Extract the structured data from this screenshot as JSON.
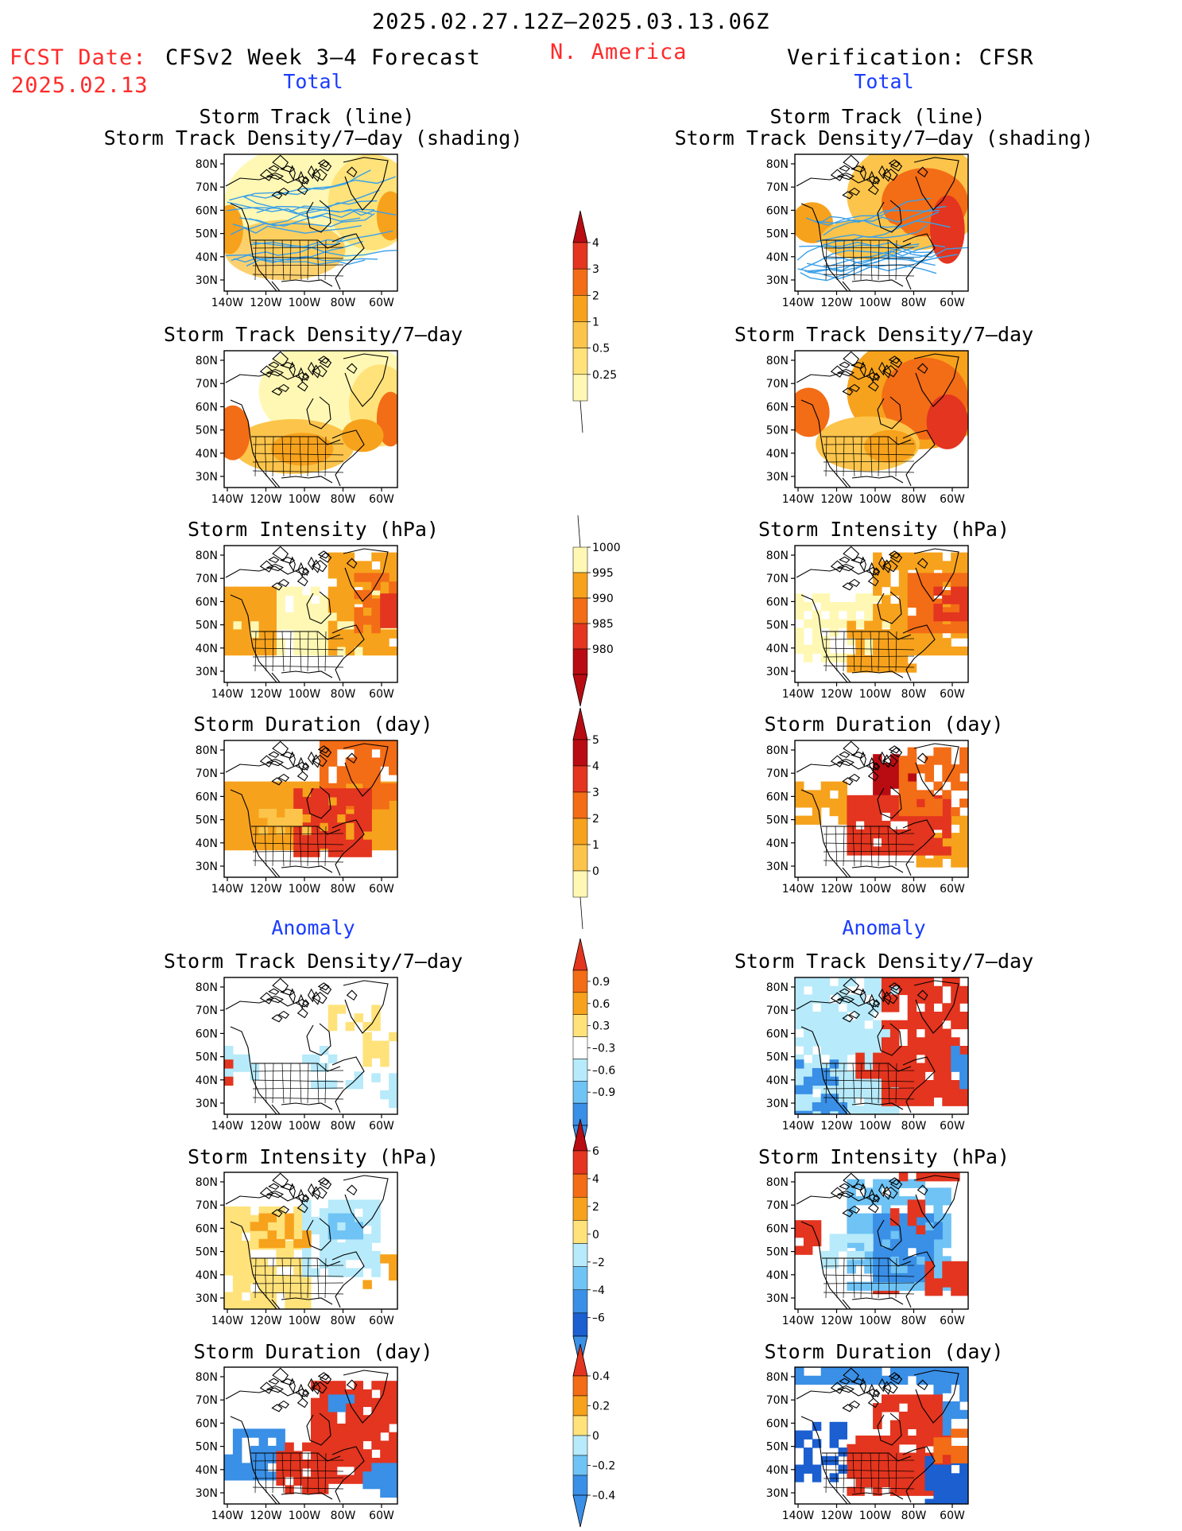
{
  "header": {
    "period": "2025.02.27.12Z–2025.03.13.06Z",
    "fcst_label": "FCST Date:",
    "fcst_date": "2025.02.13",
    "left_title": "CFSv2 Week 3–4 Forecast",
    "region": "N. America",
    "right_title": "Verification: CFSR"
  },
  "sections": {
    "total": "Total",
    "anomaly": "Anomaly"
  },
  "panel_titles": {
    "track_line": "Storm Track (line)",
    "track_shade": "Storm Track Density/7–day (shading)",
    "density": "Storm Track Density/7–day",
    "intensity": "Storm Intensity (hPa)",
    "duration": "Storm Duration (day)"
  },
  "axes": {
    "lat_labels": [
      "80N",
      "70N",
      "60N",
      "50N",
      "40N",
      "30N"
    ],
    "lon_labels": [
      "140W",
      "120W",
      "100W",
      "80W",
      "60W"
    ]
  },
  "colors": {
    "lightyellow": "#fff8b4",
    "yellow": "#ffe27a",
    "lightorange": "#fcc44a",
    "orange": "#f7a21c",
    "darkorange": "#f36c16",
    "red": "#e3351f",
    "darkred": "#b80c12",
    "lightblue": "#b7eafa",
    "midblue": "#6fc3f5",
    "blue": "#3a8fe6",
    "darkblue": "#1b5fd0",
    "track_line": "#3aa0e8"
  },
  "colorbars": [
    {
      "id": "density_total",
      "labels": [
        "4",
        "3",
        "2",
        "1",
        "0.5",
        "0.25"
      ]
    },
    {
      "id": "intensity_total",
      "labels": [
        "1000",
        "995",
        "990",
        "985",
        "980"
      ]
    },
    {
      "id": "duration_total",
      "labels": [
        "5",
        "4",
        "3",
        "2",
        "1",
        "0"
      ]
    },
    {
      "id": "density_anom",
      "labels": [
        "0.9",
        "0.6",
        "0.3",
        "–0.3",
        "–0.6",
        "–0.9"
      ]
    },
    {
      "id": "intensity_anom",
      "labels": [
        "6",
        "4",
        "2",
        "0",
        "–2",
        "–4",
        "–6"
      ]
    },
    {
      "id": "duration_anom",
      "labels": [
        "0.4",
        "0.2",
        "0",
        "–0.2",
        "–0.4"
      ]
    }
  ]
}
